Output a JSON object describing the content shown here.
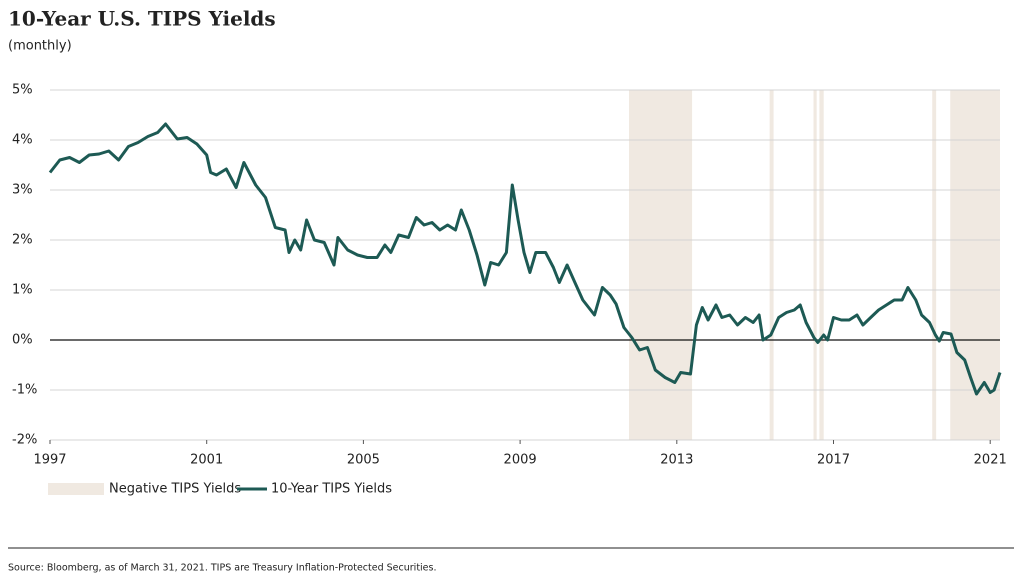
{
  "chart_data": {
    "type": "line",
    "title": "10-Year U.S. TIPS Yields",
    "subtitle": "(monthly)",
    "source": "Source: Bloomberg, as of March 31, 2021. TIPS are Treasury Inflation-Protected Securities.",
    "xlim": [
      1997,
      2021.25
    ],
    "xticks": [
      1997,
      2001,
      2005,
      2009,
      2013,
      2017,
      2021
    ],
    "ylim": [
      -2,
      5
    ],
    "yticks": [
      {
        "value": -2,
        "label": "-2%"
      },
      {
        "value": -1,
        "label": "-1%"
      },
      {
        "value": 0,
        "label": "0%"
      },
      {
        "value": 1,
        "label": "1%"
      },
      {
        "value": 2,
        "label": "2%"
      },
      {
        "value": 3,
        "label": "3%"
      },
      {
        "value": 4,
        "label": "4%"
      },
      {
        "value": 5,
        "label": "5%"
      }
    ],
    "grid": true,
    "shaded_regions": {
      "name": "Negative TIPS Yields",
      "color": "#f0e9e1",
      "ranges": [
        [
          2011.78,
          2013.39
        ],
        [
          2015.37,
          2015.47
        ],
        [
          2016.49,
          2016.57
        ],
        [
          2016.64,
          2016.75
        ],
        [
          2019.52,
          2019.62
        ],
        [
          2019.98,
          2021.25
        ]
      ]
    },
    "series": [
      {
        "name": "10-Year TIPS Yields",
        "color": "#1d5a54",
        "x": [
          1997.0,
          1997.25,
          1997.5,
          1997.75,
          1998.0,
          1998.25,
          1998.5,
          1998.75,
          1999.0,
          1999.25,
          1999.5,
          1999.75,
          1999.95,
          2000.25,
          2000.5,
          2000.75,
          2001.0,
          2001.1,
          2001.25,
          2001.5,
          2001.75,
          2001.95,
          2002.25,
          2002.5,
          2002.75,
          2003.0,
          2003.1,
          2003.25,
          2003.4,
          2003.55,
          2003.75,
          2004.0,
          2004.25,
          2004.35,
          2004.6,
          2004.85,
          2005.1,
          2005.35,
          2005.55,
          2005.7,
          2005.9,
          2006.15,
          2006.35,
          2006.55,
          2006.75,
          2006.95,
          2007.15,
          2007.35,
          2007.5,
          2007.7,
          2007.9,
          2008.1,
          2008.25,
          2008.45,
          2008.65,
          2008.8,
          2008.95,
          2009.1,
          2009.25,
          2009.4,
          2009.65,
          2009.85,
          2010.0,
          2010.2,
          2010.4,
          2010.6,
          2010.8,
          2010.9,
          2011.1,
          2011.3,
          2011.45,
          2011.65,
          2011.85,
          2012.05,
          2012.25,
          2012.45,
          2012.7,
          2012.95,
          2013.1,
          2013.35,
          2013.5,
          2013.65,
          2013.8,
          2014.0,
          2014.15,
          2014.35,
          2014.55,
          2014.75,
          2014.95,
          2015.1,
          2015.2,
          2015.4,
          2015.6,
          2015.8,
          2016.0,
          2016.15,
          2016.3,
          2016.5,
          2016.6,
          2016.75,
          2016.85,
          2017.0,
          2017.2,
          2017.4,
          2017.6,
          2017.75,
          2017.95,
          2018.15,
          2018.35,
          2018.55,
          2018.75,
          2018.9,
          2019.1,
          2019.25,
          2019.45,
          2019.6,
          2019.7,
          2019.8,
          2020.0,
          2020.15,
          2020.35,
          2020.5,
          2020.65,
          2020.85,
          2021.0,
          2021.1,
          2021.25
        ],
        "values": [
          3.35,
          3.6,
          3.65,
          3.55,
          3.7,
          3.72,
          3.78,
          3.6,
          3.87,
          3.95,
          4.07,
          4.15,
          4.32,
          4.02,
          4.05,
          3.92,
          3.7,
          3.35,
          3.3,
          3.42,
          3.05,
          3.55,
          3.1,
          2.85,
          2.25,
          2.2,
          1.75,
          2.0,
          1.8,
          2.4,
          2.0,
          1.95,
          1.5,
          2.05,
          1.8,
          1.7,
          1.65,
          1.65,
          1.9,
          1.75,
          2.1,
          2.05,
          2.45,
          2.3,
          2.35,
          2.2,
          2.3,
          2.2,
          2.6,
          2.2,
          1.7,
          1.1,
          1.55,
          1.5,
          1.75,
          3.1,
          2.4,
          1.75,
          1.35,
          1.75,
          1.75,
          1.45,
          1.15,
          1.5,
          1.15,
          0.8,
          0.6,
          0.5,
          1.05,
          0.9,
          0.72,
          0.25,
          0.05,
          -0.2,
          -0.15,
          -0.6,
          -0.75,
          -0.85,
          -0.65,
          -0.68,
          0.3,
          0.65,
          0.4,
          0.7,
          0.45,
          0.5,
          0.3,
          0.45,
          0.35,
          0.5,
          0.0,
          0.1,
          0.45,
          0.55,
          0.6,
          0.7,
          0.35,
          0.05,
          -0.05,
          0.1,
          0.0,
          0.45,
          0.4,
          0.4,
          0.5,
          0.3,
          0.45,
          0.6,
          0.7,
          0.8,
          0.8,
          1.05,
          0.8,
          0.5,
          0.35,
          0.1,
          -0.02,
          0.15,
          0.12,
          -0.25,
          -0.4,
          -0.75,
          -1.08,
          -0.85,
          -1.05,
          -1.0,
          -0.65
        ]
      }
    ]
  }
}
